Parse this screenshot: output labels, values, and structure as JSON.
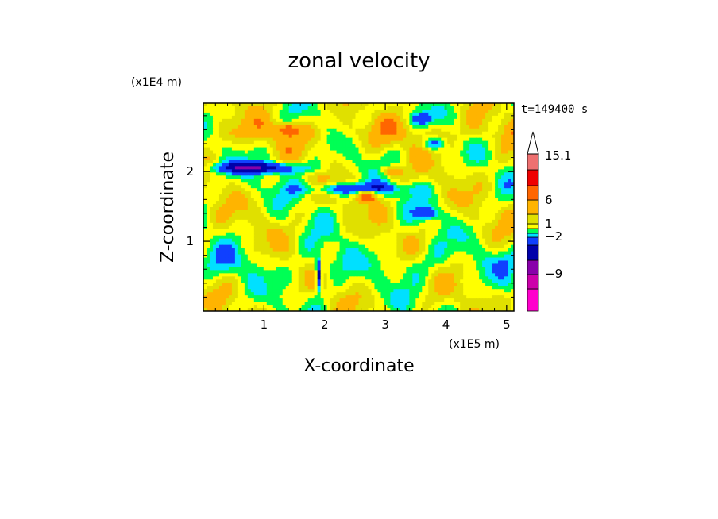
{
  "chart_data": {
    "type": "heatmap",
    "title": "zonal velocity",
    "xlabel": "X-coordinate",
    "ylabel": "Z-coordinate",
    "x_unit": "(x1E5 m)",
    "y_unit": "(x1E4 m)",
    "time_label": "t=149400 s",
    "x_ticks": [
      "1",
      "2",
      "3",
      "4",
      "5"
    ],
    "y_ticks": [
      "1",
      "2"
    ],
    "xlim": [
      0,
      5.12
    ],
    "ylim": [
      0,
      2.98
    ],
    "colorbar": {
      "levels_shown": [
        "15.1",
        "6",
        "1",
        "-2",
        "-9"
      ],
      "colors": [
        "#ff00cc",
        "#cc00aa",
        "#8800aa",
        "#0000aa",
        "#1040ff",
        "#00e0ff",
        "#00ff55",
        "#ffff00",
        "#e0e000",
        "#ffb400",
        "#ff6600",
        "#ee0000",
        "#ee7070",
        "#ffb0b0",
        "#ffffff"
      ]
    },
    "field_features": [
      {
        "desc": "negative jet band (blue)",
        "x": 0.9,
        "z": 2.05,
        "value": -6
      },
      {
        "desc": "negative jet band (blue)",
        "x": 2.5,
        "z": 1.75,
        "value": -5
      },
      {
        "desc": "negative core (blue)",
        "x": 3.7,
        "z": 1.4,
        "value": -4
      },
      {
        "desc": "negative core (blue)",
        "x": 3.6,
        "z": 2.75,
        "value": -4
      },
      {
        "desc": "negative core (blue)",
        "x": 3.8,
        "z": 2.4,
        "value": -4
      },
      {
        "desc": "narrow negative core near surface",
        "x": 1.9,
        "z": 0.5,
        "value": -7
      },
      {
        "desc": "positive core (orange/red)",
        "x": 1.4,
        "z": 2.6,
        "value": 4
      },
      {
        "desc": "positive core (orange/red)",
        "x": 3.1,
        "z": 2.0,
        "value": 4
      },
      {
        "desc": "positive core (orange/red)",
        "x": 2.7,
        "z": 1.65,
        "value": 5
      }
    ]
  }
}
